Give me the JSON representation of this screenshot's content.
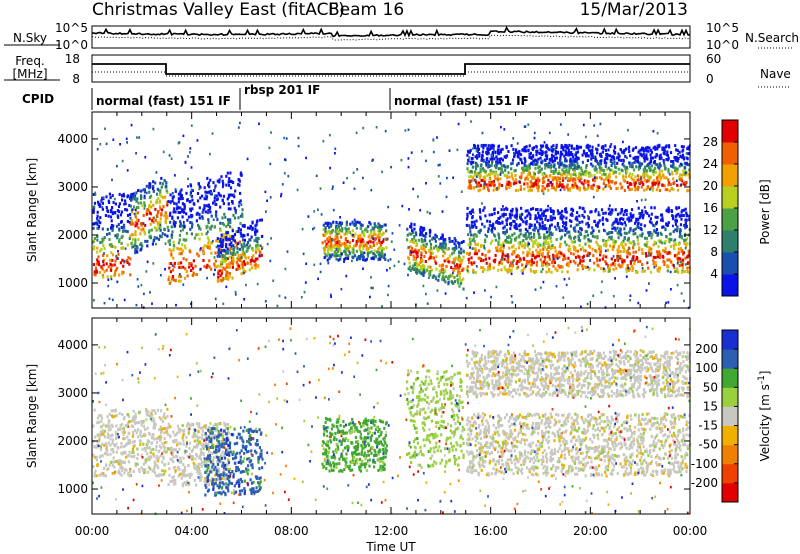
{
  "header": {
    "title": "Christmas Valley East (fitACF)",
    "beam": "Beam 16",
    "date": "15/Mar/2013"
  },
  "noise_panel": {
    "left_label": "N.Sky",
    "left_ticks": [
      "10^5",
      "10^0"
    ],
    "right_ticks": [
      "10^5",
      "10^0"
    ],
    "right_label": "N.Search"
  },
  "freq_panel": {
    "left_label_1": "Freq.",
    "left_label_2": "[MHz]",
    "left_ticks": [
      "18",
      "8"
    ],
    "right_ticks": [
      "60",
      "0"
    ],
    "right_label": "Nave"
  },
  "cpid": {
    "label": "CPID",
    "segments": [
      {
        "label": "normal (fast) 151 IF",
        "start_h": 0,
        "end_h": 6
      },
      {
        "label": "rbsp 201 IF",
        "start_h": 6,
        "end_h": 12
      },
      {
        "label": "normal (fast) 151 IF",
        "start_h": 12,
        "end_h": 24
      }
    ]
  },
  "colors": {
    "power": [
      "#0a14e6",
      "#1a4fb0",
      "#2e7f6c",
      "#4ca046",
      "#b9d020",
      "#f0a000",
      "#f06000",
      "#e00000"
    ],
    "velocity": [
      "#e00000",
      "#f04000",
      "#f08000",
      "#f0b000",
      "#c8c8c0",
      "#9ad040",
      "#40a830",
      "#2d5fb0",
      "#1a2fd0"
    ]
  },
  "chart_data": [
    {
      "type": "heatmap",
      "name": "power_panel",
      "ylabel": "Slant Range [km]",
      "yticks": [
        1000,
        2000,
        3000,
        4000
      ],
      "ylim": [
        480,
        4560
      ],
      "xlim_hours": [
        0,
        24
      ],
      "colorbar": {
        "label": "Power [dB]",
        "ticks": [
          4,
          8,
          12,
          16,
          20,
          24,
          28
        ],
        "range": [
          0,
          32
        ]
      },
      "bands": [
        {
          "t0": 0.0,
          "t1": 1.5,
          "r0": 1150,
          "r1": 2900,
          "core": 1400,
          "dir": 0
        },
        {
          "t0": 1.5,
          "t1": 3.0,
          "r0": 1600,
          "r1": 2900,
          "core": 2200,
          "dir": 1
        },
        {
          "t0": 3.0,
          "t1": 6.0,
          "r0": 1000,
          "r1": 3000,
          "core": 1300,
          "dir": 1
        },
        {
          "t0": 5.0,
          "t1": 6.8,
          "r0": 1000,
          "r1": 2000,
          "core": 1200,
          "dir": 1
        },
        {
          "t0": 9.2,
          "t1": 11.8,
          "r0": 1500,
          "r1": 2300,
          "core": 1900,
          "dir": 0
        },
        {
          "t0": 12.6,
          "t1": 14.9,
          "r0": 1300,
          "r1": 2300,
          "core": 1700,
          "dir": -1
        },
        {
          "t0": 15.0,
          "t1": 24.0,
          "r0": 1250,
          "r1": 2600,
          "core": 1550,
          "dir": 0
        },
        {
          "t0": 15.0,
          "t1": 24.0,
          "r0": 2950,
          "r1": 3900,
          "core": 3100,
          "dir": 0
        }
      ]
    },
    {
      "type": "heatmap",
      "name": "velocity_panel",
      "ylabel": "Slant Range [km]",
      "yticks": [
        1000,
        2000,
        3000,
        4000
      ],
      "ylim": [
        480,
        4560
      ],
      "xlim_hours": [
        0,
        24
      ],
      "xticks": [
        "00:00",
        "04:00",
        "08:00",
        "12:00",
        "16:00",
        "20:00",
        "00:00"
      ],
      "xlabel": "Time UT",
      "colorbar": {
        "label": "Velocity [m s^-1]",
        "ticks": [
          200,
          100,
          50,
          15,
          -15,
          -50,
          -100,
          -200
        ]
      },
      "bands": [
        {
          "t0": 0.0,
          "t1": 3.0,
          "r0": 1300,
          "r1": 2700,
          "vclass": 4
        },
        {
          "t0": 3.0,
          "t1": 5.5,
          "r0": 1100,
          "r1": 2400,
          "vclass": 4
        },
        {
          "t0": 4.5,
          "t1": 6.8,
          "r0": 900,
          "r1": 2300,
          "vclass": 7
        },
        {
          "t0": 9.2,
          "t1": 11.8,
          "r0": 1400,
          "r1": 2500,
          "vclass": 6
        },
        {
          "t0": 12.6,
          "t1": 14.9,
          "r0": 1500,
          "r1": 3500,
          "vclass": 5
        },
        {
          "t0": 15.0,
          "t1": 24.0,
          "r0": 1300,
          "r1": 2600,
          "vclass": 4
        },
        {
          "t0": 15.0,
          "t1": 24.0,
          "r0": 2950,
          "r1": 3900,
          "vclass": 4
        }
      ]
    }
  ]
}
